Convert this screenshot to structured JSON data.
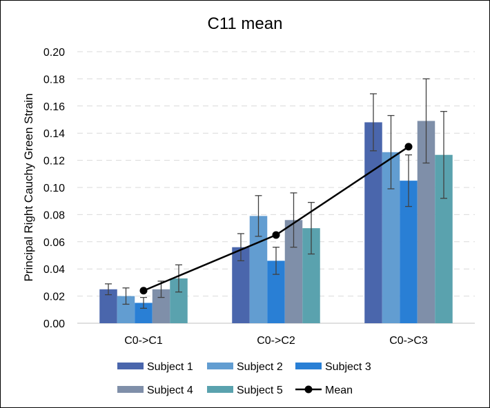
{
  "chart_data": {
    "type": "bar",
    "title": "C11 mean",
    "xlabel": "",
    "ylabel": "Principal Right Cauchy Green Strain",
    "ylim": [
      0,
      0.2
    ],
    "yticks": [
      "0.00",
      "0.02",
      "0.04",
      "0.06",
      "0.08",
      "0.10",
      "0.12",
      "0.14",
      "0.16",
      "0.18",
      "0.20"
    ],
    "categories": [
      "C0->C1",
      "C0->C2",
      "C0->C3"
    ],
    "grid": "horizontal dashed",
    "legend_position": "bottom",
    "series": [
      {
        "name": "Subject 1",
        "color": "#4A66AC",
        "values": [
          0.025,
          0.056,
          0.148
        ],
        "errors": [
          0.004,
          0.01,
          0.021
        ]
      },
      {
        "name": "Subject 2",
        "color": "#629DD1",
        "values": [
          0.02,
          0.079,
          0.126
        ],
        "errors": [
          0.006,
          0.015,
          0.027
        ]
      },
      {
        "name": "Subject 3",
        "color": "#297FD5",
        "values": [
          0.015,
          0.046,
          0.105
        ],
        "errors": [
          0.004,
          0.01,
          0.019
        ]
      },
      {
        "name": "Subject 4",
        "color": "#7F8FA9",
        "values": [
          0.025,
          0.076,
          0.149
        ],
        "errors": [
          0.006,
          0.02,
          0.031
        ]
      },
      {
        "name": "Subject 5",
        "color": "#5AA2AE",
        "values": [
          0.033,
          0.07,
          0.124
        ],
        "errors": [
          0.01,
          0.019,
          0.032
        ]
      }
    ],
    "line_series": {
      "name": "Mean",
      "color": "#000000",
      "values": [
        0.024,
        0.065,
        0.13
      ]
    }
  }
}
